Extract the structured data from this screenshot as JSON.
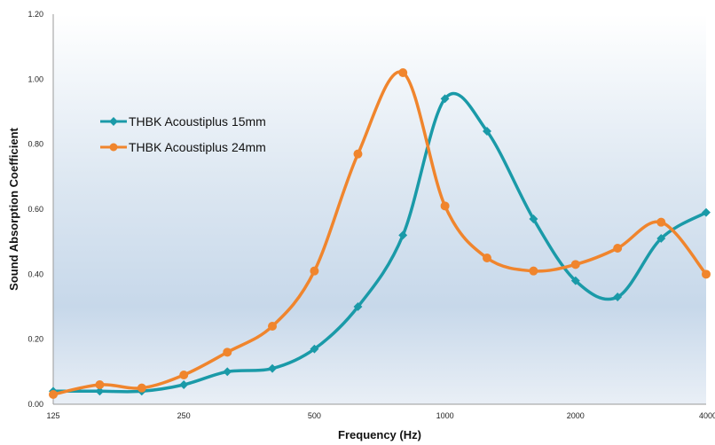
{
  "chart_data": {
    "type": "line",
    "title": "",
    "xlabel": "Frequency (Hz)",
    "ylabel": "Sound Absorption Coefficient",
    "x_scale": "log",
    "xlim": [
      125,
      4000
    ],
    "ylim": [
      0,
      1.2
    ],
    "x_tick_labels": [
      "125",
      "250",
      "500",
      "1000",
      "2000",
      "4000"
    ],
    "y_tick_labels": [
      "0.00",
      "0.20",
      "0.40",
      "0.60",
      "0.80",
      "1.00",
      "1.20"
    ],
    "grid": false,
    "legend_position": "upper-left",
    "x": [
      125,
      160,
      200,
      250,
      315,
      400,
      500,
      630,
      800,
      1000,
      1250,
      1600,
      2000,
      2500,
      3150,
      4000
    ],
    "series": [
      {
        "name": "THBK Acoustiplus 15mm",
        "color": "#1a9aa8",
        "marker": "diamond",
        "values": [
          0.04,
          0.04,
          0.04,
          0.06,
          0.1,
          0.11,
          0.17,
          0.3,
          0.52,
          0.94,
          0.84,
          0.57,
          0.38,
          0.33,
          0.51,
          0.59
        ]
      },
      {
        "name": "THBK Acoustiplus 24mm",
        "color": "#f0852d",
        "marker": "circle",
        "values": [
          0.03,
          0.06,
          0.05,
          0.09,
          0.16,
          0.24,
          0.41,
          0.77,
          1.02,
          0.61,
          0.45,
          0.41,
          0.43,
          0.48,
          0.56,
          0.4
        ]
      }
    ]
  }
}
